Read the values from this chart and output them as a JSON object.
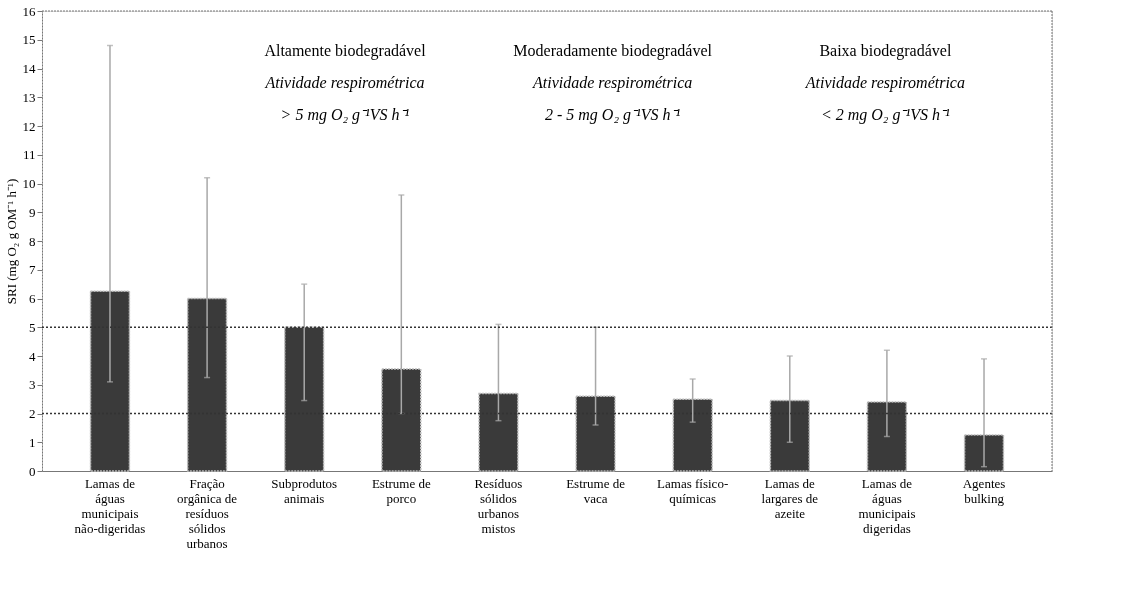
{
  "chart_data": {
    "type": "bar",
    "ylabel": "SRI (mg O₂ g OM⁻¹ h⁻¹)",
    "categories": [
      "Lamas de águas municipais não-digeridas",
      "Fração orgânica de resíduos sólidos urbanos",
      "Subprodutos animais",
      "Estrume de porco",
      "Resíduos sólidos urbanos mistos",
      "Estrume de vaca",
      "Lamas físico-químicas",
      "Lamas de largares de azeite",
      "Lamas de águas municipais digeridas",
      "Agentes bulking"
    ],
    "values": [
      6.25,
      6.0,
      5.0,
      3.55,
      2.7,
      2.6,
      2.5,
      2.45,
      2.4,
      1.25
    ],
    "color": "#3a3a3a",
    "errors": [
      [
        3.1,
        14.8
      ],
      [
        3.25,
        10.2
      ],
      [
        2.45,
        6.5
      ],
      [
        2.0,
        9.6
      ],
      [
        1.75,
        5.1
      ],
      [
        1.6,
        5.0
      ],
      [
        1.7,
        3.2
      ],
      [
        1.0,
        4.0
      ],
      [
        1.2,
        4.2
      ],
      [
        0.15,
        3.9
      ]
    ],
    "ylim": [
      0,
      16
    ],
    "yticks": [
      0,
      1,
      2,
      3,
      4,
      5,
      6,
      7,
      8,
      9,
      10,
      11,
      12,
      13,
      14,
      15,
      16
    ],
    "ref_lines": [
      {
        "axis": "y",
        "value": 5,
        "label": null,
        "line_style": "dotted",
        "color": "#333333"
      },
      {
        "axis": "y",
        "value": 2,
        "label": null,
        "line_style": "dotted",
        "color": "#333333"
      }
    ],
    "annotations": [
      "Altamente biodegradável",
      "Atividade respirométrica",
      "> 5 mg O₂ g⁻¹VS h⁻¹",
      "Moderadamente biodegradável",
      "Atividade respirométrica",
      "2 - 5 mg O₂ g⁻¹VS h⁻¹",
      "Baixa biodegradável",
      "Atividade respirométrica",
      "< 2  mg O₂ g⁻¹VS h⁻¹"
    ],
    "grid": false
  }
}
